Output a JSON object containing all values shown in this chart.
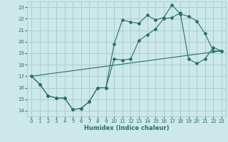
{
  "xlabel": "Humidex (Indice chaleur)",
  "background_color": "#cce8e8",
  "grid_color": "#aacece",
  "line_color": "#2a6e6a",
  "xlim": [
    -0.5,
    23.5
  ],
  "ylim": [
    13.5,
    23.5
  ],
  "xticks": [
    0,
    1,
    2,
    3,
    4,
    5,
    6,
    7,
    8,
    9,
    10,
    11,
    12,
    13,
    14,
    15,
    16,
    17,
    18,
    19,
    20,
    21,
    22,
    23
  ],
  "yticks": [
    14,
    15,
    16,
    17,
    18,
    19,
    20,
    21,
    22,
    23
  ],
  "line1_x": [
    0,
    1,
    2,
    3,
    4,
    5,
    6,
    7,
    8,
    9,
    10,
    11,
    12,
    13,
    14,
    15,
    16,
    17,
    18,
    19,
    20,
    21,
    22,
    23
  ],
  "line1_y": [
    17.0,
    16.3,
    15.3,
    15.1,
    15.1,
    14.1,
    14.2,
    14.8,
    16.0,
    16.0,
    19.8,
    21.9,
    21.7,
    21.6,
    22.3,
    21.9,
    22.1,
    23.2,
    22.4,
    22.2,
    21.8,
    20.7,
    19.2,
    19.2
  ],
  "line2_x": [
    0,
    1,
    2,
    3,
    4,
    5,
    6,
    7,
    8,
    9,
    10,
    11,
    12,
    13,
    14,
    15,
    16,
    17,
    18,
    19,
    20,
    21,
    22,
    23
  ],
  "line2_y": [
    17.0,
    16.3,
    15.3,
    15.1,
    15.1,
    14.1,
    14.2,
    14.8,
    16.0,
    16.0,
    18.5,
    18.4,
    18.5,
    20.1,
    20.6,
    21.1,
    22.0,
    22.1,
    22.5,
    18.5,
    18.1,
    18.5,
    19.5,
    19.2
  ],
  "line3_x": [
    0,
    23
  ],
  "line3_y": [
    17.0,
    19.2
  ]
}
